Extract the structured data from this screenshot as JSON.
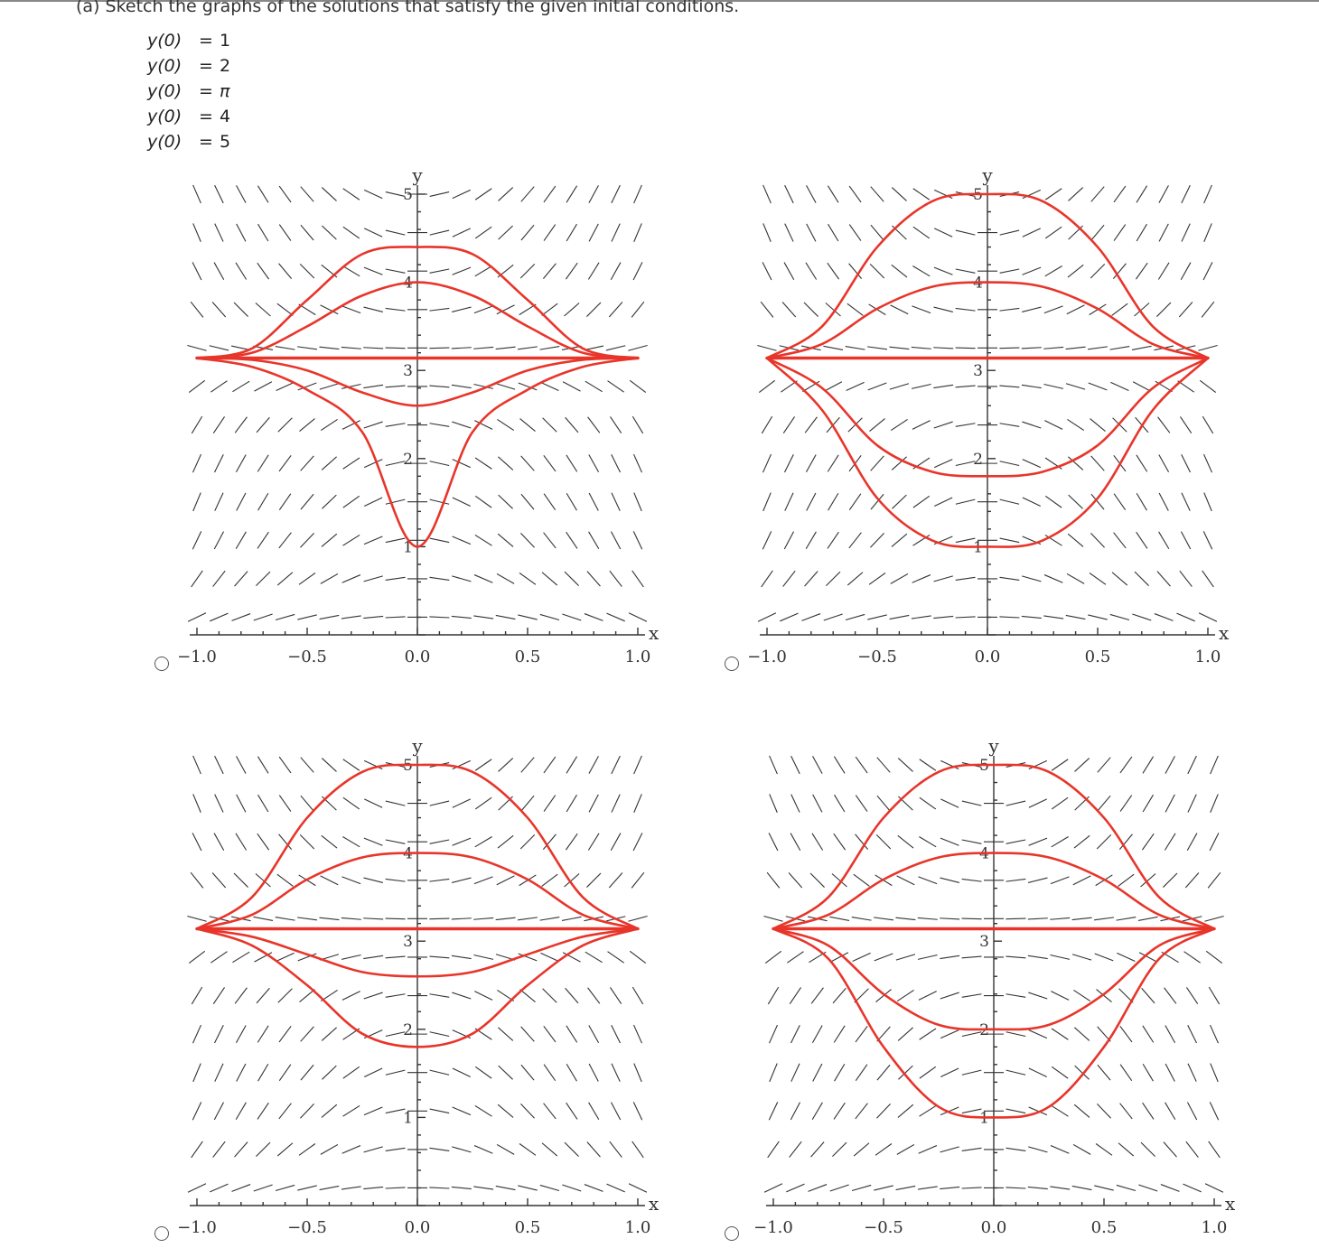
{
  "question": "(a) Sketch the graphs of the solutions that satisfy the given initial conditions.",
  "initial_conditions": [
    {
      "lhs": "y(0)",
      "eq": "=",
      "rhs": "1"
    },
    {
      "lhs": "y(0)",
      "eq": "=",
      "rhs": "2"
    },
    {
      "lhs": "y(0)",
      "eq": "=",
      "rhs": "π"
    },
    {
      "lhs": "y(0)",
      "eq": "=",
      "rhs": "4"
    },
    {
      "lhs": "y(0)",
      "eq": "=",
      "rhs": "5"
    }
  ],
  "colors": {
    "curve": "#e8352a",
    "field": "#333333",
    "axis": "#333333"
  },
  "chart_data": [
    {
      "type": "line",
      "xlabel": "x",
      "ylabel": "y",
      "xlim": [
        -1,
        1
      ],
      "ylim": [
        0,
        5
      ],
      "x_ticks": [
        "-1.0",
        "-0.5",
        "0.0",
        "0.5",
        "1.0"
      ],
      "y_ticks": [
        "1",
        "2",
        "3",
        "4",
        "5"
      ],
      "series": [
        {
          "values": [
            [
              -1,
              3.14
            ],
            [
              -0.75,
              3.04
            ],
            [
              -0.5,
              2.78
            ],
            [
              -0.25,
              2.3
            ],
            [
              0,
              1.0
            ],
            [
              0.25,
              2.3
            ],
            [
              0.5,
              2.78
            ],
            [
              0.75,
              3.04
            ],
            [
              1,
              3.14
            ]
          ]
        },
        {
          "values": [
            [
              -1,
              3.14
            ],
            [
              -0.75,
              3.12
            ],
            [
              -0.5,
              3.0
            ],
            [
              -0.25,
              2.75
            ],
            [
              0,
              2.6
            ],
            [
              0.25,
              2.75
            ],
            [
              0.5,
              3.0
            ],
            [
              0.75,
              3.12
            ],
            [
              1,
              3.14
            ]
          ]
        },
        {
          "values": [
            [
              -1,
              3.14
            ],
            [
              0,
              3.14
            ],
            [
              1,
              3.14
            ]
          ]
        },
        {
          "values": [
            [
              -1,
              3.14
            ],
            [
              -0.75,
              3.2
            ],
            [
              -0.5,
              3.5
            ],
            [
              -0.25,
              3.85
            ],
            [
              0,
              4.0
            ],
            [
              0.25,
              3.85
            ],
            [
              0.5,
              3.5
            ],
            [
              0.75,
              3.2
            ],
            [
              1,
              3.14
            ]
          ]
        },
        {
          "values": [
            [
              -1,
              3.14
            ],
            [
              -0.75,
              3.25
            ],
            [
              -0.5,
              3.8
            ],
            [
              -0.25,
              4.32
            ],
            [
              0,
              4.4
            ],
            [
              0.25,
              4.32
            ],
            [
              0.5,
              3.8
            ],
            [
              0.75,
              3.25
            ],
            [
              1,
              3.14
            ]
          ]
        }
      ]
    },
    {
      "type": "line",
      "xlabel": "x",
      "ylabel": "y",
      "xlim": [
        -1,
        1
      ],
      "ylim": [
        0,
        5
      ],
      "x_ticks": [
        "-1.0",
        "-0.5",
        "0.0",
        "0.5",
        "1.0"
      ],
      "y_ticks": [
        "1",
        "2",
        "3",
        "4",
        "5"
      ],
      "series": [
        {
          "values": [
            [
              -1,
              3.14
            ],
            [
              -0.75,
              2.55
            ],
            [
              -0.5,
              1.55
            ],
            [
              -0.25,
              1.07
            ],
            [
              0,
              1.0
            ],
            [
              0.25,
              1.07
            ],
            [
              0.5,
              1.55
            ],
            [
              0.75,
              2.55
            ],
            [
              1,
              3.14
            ]
          ]
        },
        {
          "values": [
            [
              -1,
              3.14
            ],
            [
              -0.75,
              2.8
            ],
            [
              -0.5,
              2.15
            ],
            [
              -0.25,
              1.85
            ],
            [
              0,
              1.8
            ],
            [
              0.25,
              1.85
            ],
            [
              0.5,
              2.15
            ],
            [
              0.75,
              2.8
            ],
            [
              1,
              3.14
            ]
          ]
        },
        {
          "values": [
            [
              -1,
              3.14
            ],
            [
              0,
              3.14
            ],
            [
              1,
              3.14
            ]
          ]
        },
        {
          "values": [
            [
              -1,
              3.14
            ],
            [
              -0.75,
              3.3
            ],
            [
              -0.5,
              3.7
            ],
            [
              -0.25,
              3.95
            ],
            [
              0,
              4.0
            ],
            [
              0.25,
              3.95
            ],
            [
              0.5,
              3.7
            ],
            [
              0.75,
              3.3
            ],
            [
              1,
              3.14
            ]
          ]
        },
        {
          "values": [
            [
              -1,
              3.14
            ],
            [
              -0.75,
              3.5
            ],
            [
              -0.5,
              4.4
            ],
            [
              -0.25,
              4.92
            ],
            [
              0,
              5.0
            ],
            [
              0.25,
              4.92
            ],
            [
              0.5,
              4.4
            ],
            [
              0.75,
              3.5
            ],
            [
              1,
              3.14
            ]
          ]
        }
      ]
    },
    {
      "type": "line",
      "xlabel": "x",
      "ylabel": "y",
      "xlim": [
        -1,
        1
      ],
      "ylim": [
        0,
        5
      ],
      "x_ticks": [
        "-1.0",
        "-0.5",
        "0.0",
        "0.5",
        "1.0"
      ],
      "y_ticks": [
        "1",
        "2",
        "3",
        "4",
        "5"
      ],
      "series": [
        {
          "values": [
            [
              -1,
              3.14
            ],
            [
              -0.75,
              2.95
            ],
            [
              -0.5,
              2.5
            ],
            [
              -0.25,
              1.95
            ],
            [
              0,
              1.8
            ],
            [
              0.25,
              1.95
            ],
            [
              0.5,
              2.5
            ],
            [
              0.75,
              2.95
            ],
            [
              1,
              3.14
            ]
          ]
        },
        {
          "values": [
            [
              -1,
              3.14
            ],
            [
              -0.75,
              3.05
            ],
            [
              -0.5,
              2.85
            ],
            [
              -0.25,
              2.65
            ],
            [
              0,
              2.6
            ],
            [
              0.25,
              2.65
            ],
            [
              0.5,
              2.85
            ],
            [
              0.75,
              3.05
            ],
            [
              1,
              3.14
            ]
          ]
        },
        {
          "values": [
            [
              -1,
              3.14
            ],
            [
              0,
              3.14
            ],
            [
              1,
              3.14
            ]
          ]
        },
        {
          "values": [
            [
              -1,
              3.14
            ],
            [
              -0.75,
              3.3
            ],
            [
              -0.5,
              3.7
            ],
            [
              -0.25,
              3.95
            ],
            [
              0,
              4.0
            ],
            [
              0.25,
              3.95
            ],
            [
              0.5,
              3.7
            ],
            [
              0.75,
              3.3
            ],
            [
              1,
              3.14
            ]
          ]
        },
        {
          "values": [
            [
              -1,
              3.14
            ],
            [
              -0.75,
              3.5
            ],
            [
              -0.5,
              4.4
            ],
            [
              -0.25,
              4.92
            ],
            [
              0,
              5.0
            ],
            [
              0.25,
              4.92
            ],
            [
              0.5,
              4.4
            ],
            [
              0.75,
              3.5
            ],
            [
              1,
              3.14
            ]
          ]
        }
      ]
    },
    {
      "type": "line",
      "xlabel": "x",
      "ylabel": "y",
      "xlim": [
        -1,
        1
      ],
      "ylim": [
        0,
        5
      ],
      "x_ticks": [
        "-1.0",
        "-0.5",
        "0.0",
        "0.5",
        "1.0"
      ],
      "y_ticks": [
        "1",
        "2",
        "3",
        "4",
        "5"
      ],
      "series": [
        {
          "values": [
            [
              -1,
              3.14
            ],
            [
              -0.75,
              2.8
            ],
            [
              -0.5,
              1.8
            ],
            [
              -0.25,
              1.12
            ],
            [
              0,
              1.0
            ],
            [
              0.25,
              1.12
            ],
            [
              0.5,
              1.8
            ],
            [
              0.75,
              2.8
            ],
            [
              1,
              3.14
            ]
          ]
        },
        {
          "values": [
            [
              -1,
              3.14
            ],
            [
              -0.75,
              2.95
            ],
            [
              -0.5,
              2.4
            ],
            [
              -0.25,
              2.05
            ],
            [
              0,
              2.0
            ],
            [
              0.25,
              2.05
            ],
            [
              0.5,
              2.4
            ],
            [
              0.75,
              2.95
            ],
            [
              1,
              3.14
            ]
          ]
        },
        {
          "values": [
            [
              -1,
              3.14
            ],
            [
              0,
              3.14
            ],
            [
              1,
              3.14
            ]
          ]
        },
        {
          "values": [
            [
              -1,
              3.14
            ],
            [
              -0.75,
              3.3
            ],
            [
              -0.5,
              3.7
            ],
            [
              -0.25,
              3.95
            ],
            [
              0,
              4.0
            ],
            [
              0.25,
              3.95
            ],
            [
              0.5,
              3.7
            ],
            [
              0.75,
              3.3
            ],
            [
              1,
              3.14
            ]
          ]
        },
        {
          "values": [
            [
              -1,
              3.14
            ],
            [
              -0.75,
              3.5
            ],
            [
              -0.5,
              4.4
            ],
            [
              -0.25,
              4.92
            ],
            [
              0,
              5.0
            ],
            [
              0.25,
              4.92
            ],
            [
              0.5,
              4.4
            ],
            [
              0.75,
              3.5
            ],
            [
              1,
              3.14
            ]
          ]
        }
      ]
    }
  ]
}
